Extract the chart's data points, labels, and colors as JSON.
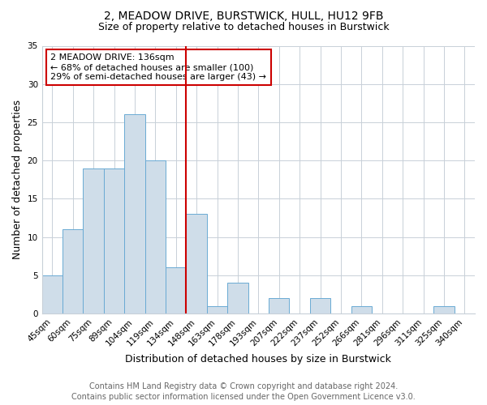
{
  "title": "2, MEADOW DRIVE, BURSTWICK, HULL, HU12 9FB",
  "subtitle": "Size of property relative to detached houses in Burstwick",
  "xlabel": "Distribution of detached houses by size in Burstwick",
  "ylabel": "Number of detached properties",
  "categories": [
    "45sqm",
    "60sqm",
    "75sqm",
    "89sqm",
    "104sqm",
    "119sqm",
    "134sqm",
    "148sqm",
    "163sqm",
    "178sqm",
    "193sqm",
    "207sqm",
    "222sqm",
    "237sqm",
    "252sqm",
    "266sqm",
    "281sqm",
    "296sqm",
    "311sqm",
    "325sqm",
    "340sqm"
  ],
  "values": [
    5,
    11,
    19,
    19,
    26,
    20,
    6,
    13,
    1,
    4,
    0,
    2,
    0,
    2,
    0,
    1,
    0,
    0,
    0,
    1,
    0
  ],
  "bar_color": "#cfdde9",
  "bar_edge_color": "#6aaad4",
  "vline_x": 6.5,
  "vline_color": "#cc0000",
  "annotation_title": "2 MEADOW DRIVE: 136sqm",
  "annotation_line1": "← 68% of detached houses are smaller (100)",
  "annotation_line2": "29% of semi-detached houses are larger (43) →",
  "annotation_box_color": "#cc0000",
  "ylim": [
    0,
    35
  ],
  "yticks": [
    0,
    5,
    10,
    15,
    20,
    25,
    30,
    35
  ],
  "footer1": "Contains HM Land Registry data © Crown copyright and database right 2024.",
  "footer2": "Contains public sector information licensed under the Open Government Licence v3.0.",
  "bg_color": "#ffffff",
  "grid_color": "#c8d0d8",
  "title_fontsize": 10,
  "subtitle_fontsize": 9,
  "axis_label_fontsize": 9,
  "ylabel_fontsize": 9,
  "tick_fontsize": 7.5,
  "annotation_fontsize": 8,
  "footer_fontsize": 7
}
